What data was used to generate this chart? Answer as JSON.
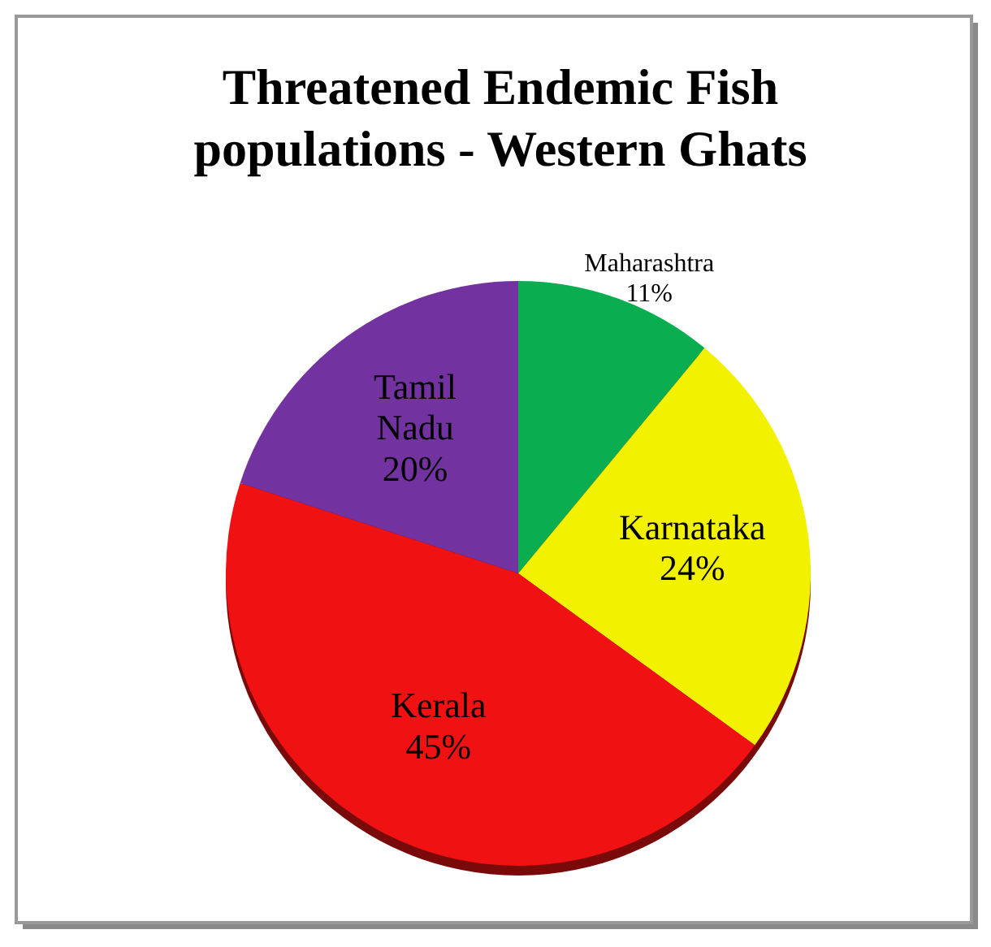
{
  "chart_data": {
    "type": "pie",
    "title": "Threatened Endemic Fish populations - Western Ghats",
    "categories": [
      "Maharashtra",
      "Karnataka",
      "Kerala",
      "Tamil Nadu"
    ],
    "values": [
      11,
      24,
      45,
      20
    ],
    "colors": [
      "#0aae50",
      "#f2f200",
      "#f01212",
      "#7233a0"
    ],
    "value_labels": [
      "11%",
      "24%",
      "45%",
      "20%"
    ]
  }
}
